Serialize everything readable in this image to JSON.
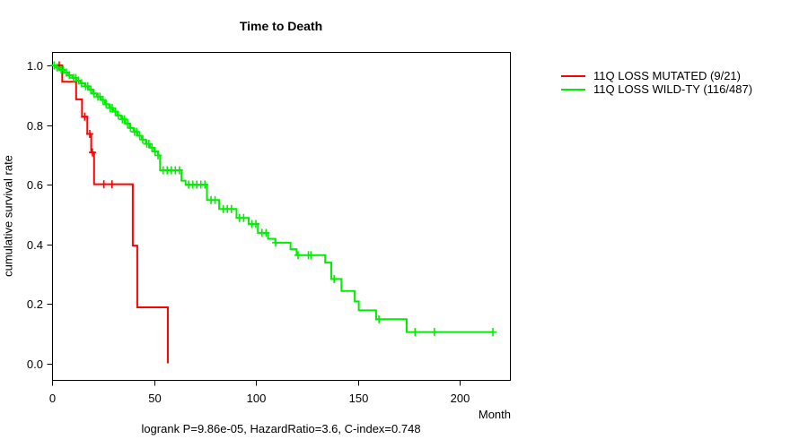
{
  "title": "Time to Death",
  "caption": "logrank P=9.86e-05, HazardRatio=3.6, C-index=0.748",
  "axes": {
    "x": {
      "label": "Month",
      "tick_labels": [
        "0",
        "50",
        "100",
        "150",
        "200"
      ],
      "tick_values": [
        0,
        50,
        100,
        150,
        200
      ]
    },
    "y": {
      "label": "cumulative survival rate",
      "tick_labels": [
        "0.0",
        "0.2",
        "0.4",
        "0.6",
        "0.8",
        "1.0"
      ],
      "tick_values": [
        0,
        0.2,
        0.4,
        0.6,
        0.8,
        1.0
      ]
    }
  },
  "legend": {
    "entries": [
      {
        "label": "11Q LOSS MUTATED (9/21)",
        "color": "#ff0000"
      },
      {
        "label": "11Q LOSS WILD-TY (116/487)",
        "color": "#00ee00"
      }
    ]
  },
  "chart_data": {
    "type": "line",
    "subtype": "kaplan-meier-step",
    "title": "Time to Death",
    "xlabel": "Month",
    "ylabel": "cumulative survival rate",
    "xlim": [
      0,
      225
    ],
    "ylim": [
      0,
      1
    ],
    "grid": false,
    "legend_position": "right-outside",
    "annotation": "logrank P=9.86e-05, HazardRatio=3.6, C-index=0.748",
    "series": [
      {
        "name": "11Q LOSS MUTATED (9/21)",
        "color": "#ff0000",
        "steps": [
          [
            0,
            1.0
          ],
          [
            5,
            0.945
          ],
          [
            11.8,
            0.886
          ],
          [
            14.7,
            0.828
          ],
          [
            17.3,
            0.77
          ],
          [
            19.2,
            0.708
          ],
          [
            20.6,
            0.601
          ],
          [
            39.6,
            0.395
          ],
          [
            41.8,
            0.188
          ],
          [
            56.8,
            0.0
          ]
        ],
        "censor_months": [
          3.5,
          16,
          18.5,
          19.8,
          25.4,
          29.4
        ]
      },
      {
        "name": "11Q LOSS WILD-TY (116/487)",
        "color": "#00ee00",
        "steps": [
          [
            0,
            1.0
          ],
          [
            2,
            0.993
          ],
          [
            4,
            0.985
          ],
          [
            6,
            0.976
          ],
          [
            8,
            0.967
          ],
          [
            10,
            0.958
          ],
          [
            12,
            0.949
          ],
          [
            14,
            0.94
          ],
          [
            16,
            0.93
          ],
          [
            18,
            0.919
          ],
          [
            20,
            0.906
          ],
          [
            22,
            0.895
          ],
          [
            24,
            0.884
          ],
          [
            26,
            0.87
          ],
          [
            28,
            0.857
          ],
          [
            30,
            0.845
          ],
          [
            32,
            0.832
          ],
          [
            34,
            0.819
          ],
          [
            36,
            0.805
          ],
          [
            38,
            0.79
          ],
          [
            40,
            0.777
          ],
          [
            42,
            0.764
          ],
          [
            44,
            0.751
          ],
          [
            46,
            0.737
          ],
          [
            48,
            0.724
          ],
          [
            50,
            0.711
          ],
          [
            52,
            0.698
          ],
          [
            53,
            0.648
          ],
          [
            63.5,
            0.613
          ],
          [
            65.5,
            0.6
          ],
          [
            76,
            0.548
          ],
          [
            82,
            0.518
          ],
          [
            90.5,
            0.488
          ],
          [
            96.5,
            0.468
          ],
          [
            101,
            0.438
          ],
          [
            106,
            0.418
          ],
          [
            109.5,
            0.405
          ],
          [
            117,
            0.383
          ],
          [
            120,
            0.363
          ],
          [
            134,
            0.338
          ],
          [
            137,
            0.283
          ],
          [
            142,
            0.243
          ],
          [
            148.5,
            0.208
          ],
          [
            150.5,
            0.178
          ],
          [
            159,
            0.148
          ],
          [
            174,
            0.105
          ],
          [
            216.3,
            0.105
          ]
        ],
        "censor_months": [
          1,
          2.5,
          4.5,
          5.5,
          7,
          8.5,
          10.5,
          11.5,
          13,
          14.5,
          16.5,
          17.5,
          19,
          20.5,
          22.5,
          23.5,
          25,
          26.5,
          28.5,
          29.5,
          31,
          32.5,
          34.5,
          35.5,
          37,
          38.5,
          40.5,
          41.5,
          43,
          44.5,
          46.5,
          47.5,
          49,
          50.5,
          52,
          54.5,
          56.5,
          58.5,
          60.5,
          62.5,
          67,
          69,
          71,
          73,
          75,
          78,
          80,
          84,
          86,
          88,
          92,
          94,
          98,
          100,
          103,
          105,
          109.7,
          120.7,
          125.8,
          127,
          138.4,
          160.4,
          178.1,
          187.6,
          216.3
        ]
      }
    ]
  }
}
